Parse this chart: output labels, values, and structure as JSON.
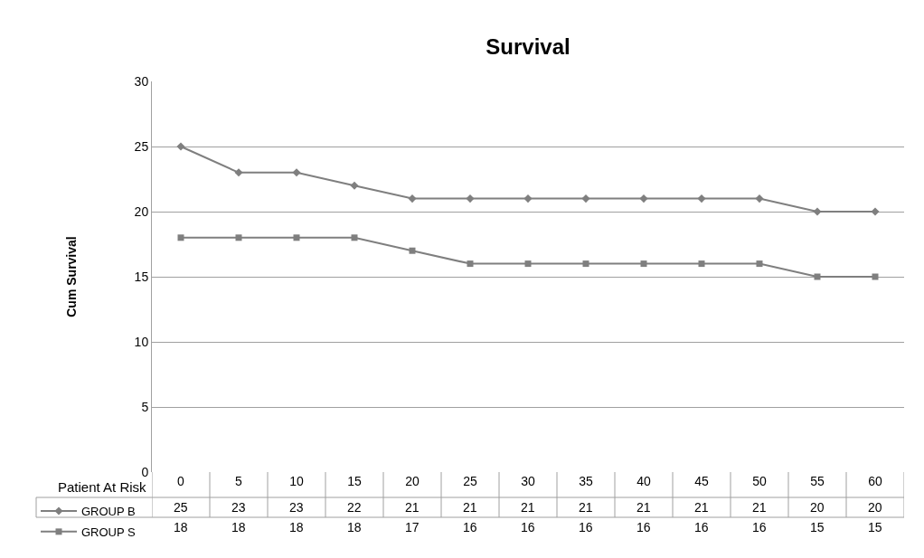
{
  "chart_data": {
    "type": "line",
    "title": "Survival",
    "ylabel": "Cum Survival",
    "xlabel": "Patient At Risk",
    "categories": [
      "0",
      "5",
      "10",
      "15",
      "20",
      "25",
      "30",
      "35",
      "40",
      "45",
      "50",
      "55",
      "60"
    ],
    "series": [
      {
        "name": "GROUP B",
        "color": "#7f7f7f",
        "marker": "diamond",
        "values": [
          25,
          23,
          23,
          22,
          21,
          21,
          21,
          21,
          21,
          21,
          21,
          20,
          20
        ]
      },
      {
        "name": "GROUP S",
        "color": "#7f7f7f",
        "marker": "square",
        "values": [
          18,
          18,
          18,
          18,
          17,
          16,
          16,
          16,
          16,
          16,
          16,
          15,
          15
        ]
      }
    ],
    "ylim": [
      0,
      30
    ],
    "yticks": [
      0,
      5,
      10,
      15,
      20,
      25,
      30
    ],
    "grid": "y",
    "legend": "bottom left",
    "data_labels": true,
    "line_style": "solid"
  }
}
